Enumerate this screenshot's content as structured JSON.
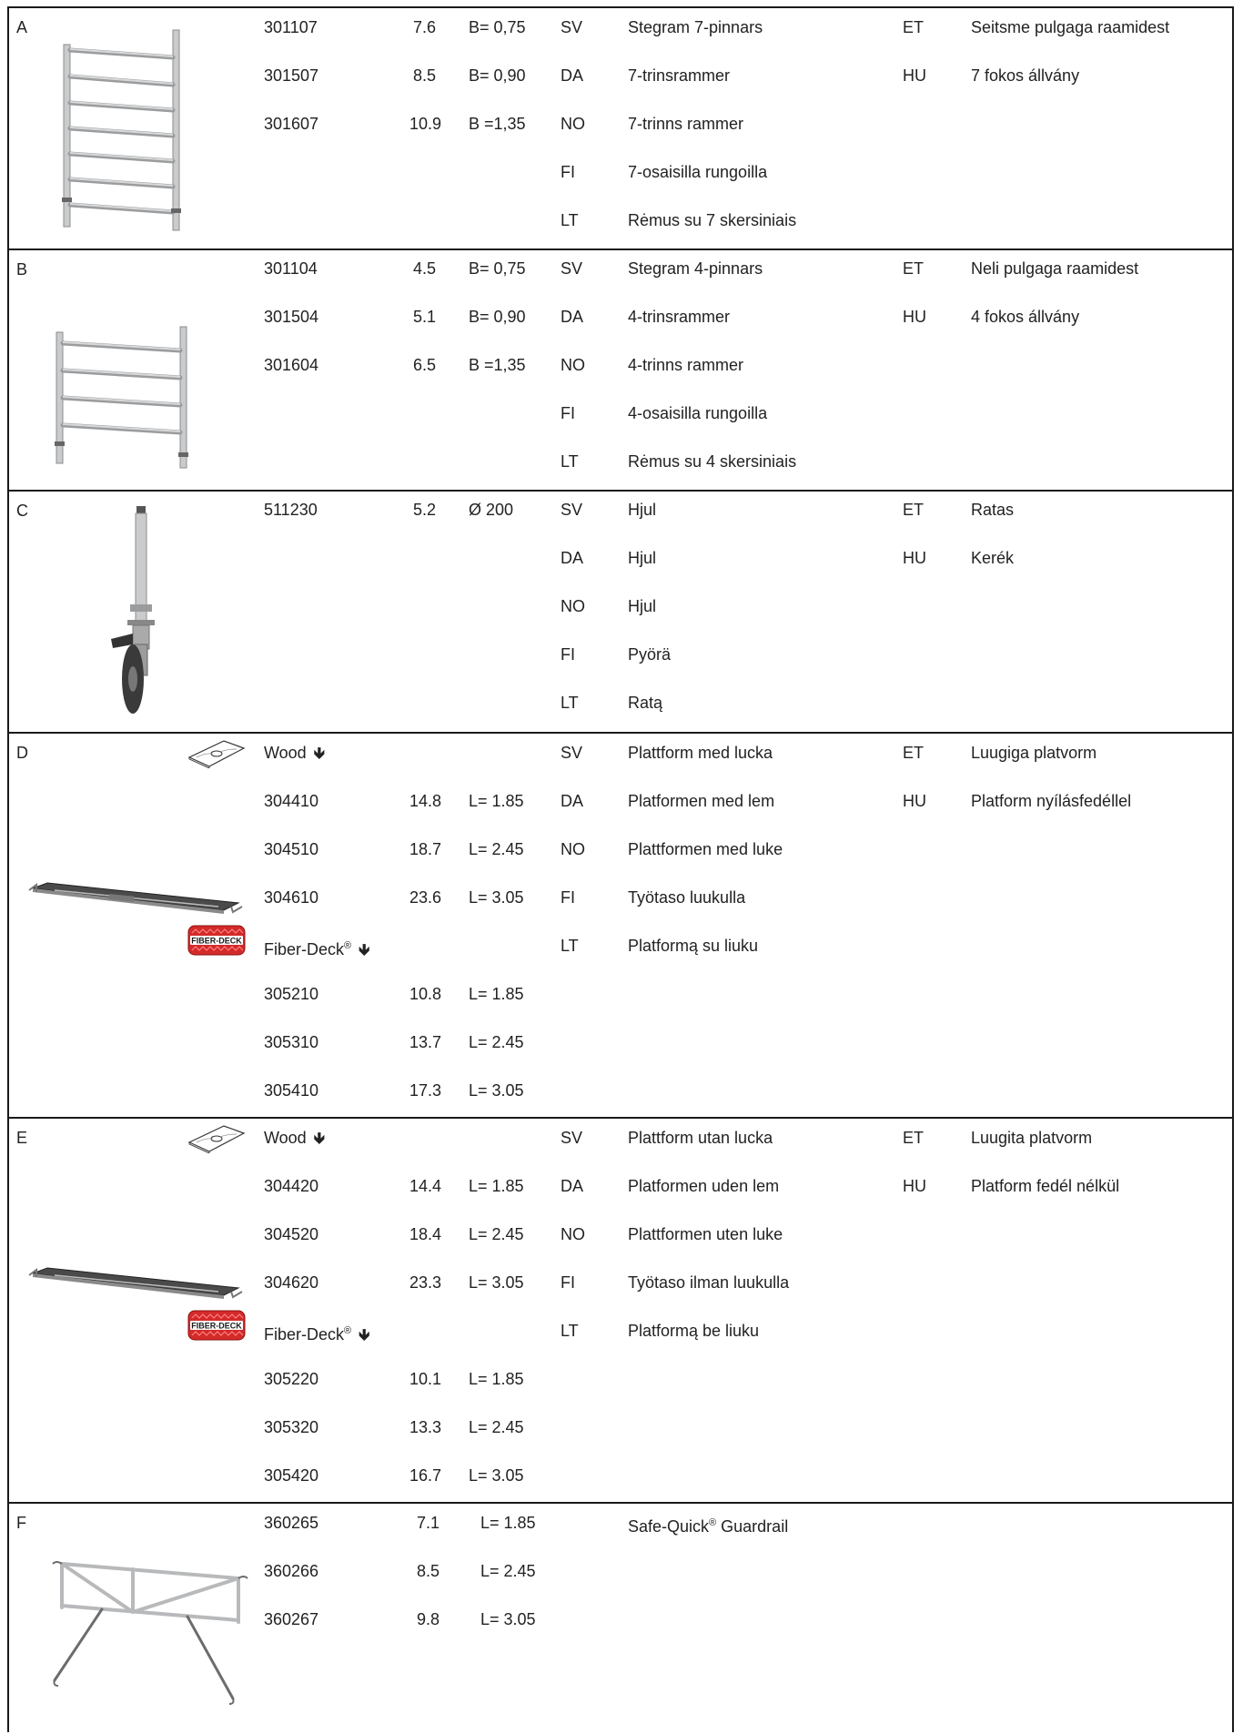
{
  "sections": [
    {
      "letter": "A",
      "articles": [
        {
          "no": "301107",
          "weight": "7.6",
          "dim": "B= 0,75"
        },
        {
          "no": "301507",
          "weight": "8.5",
          "dim": "B= 0,90"
        },
        {
          "no": "301607",
          "weight": "10.9",
          "dim": "B =1,35"
        }
      ],
      "translations": [
        {
          "lang": "SV",
          "text": "Stegram 7-pinnars"
        },
        {
          "lang": "DA",
          "text": "7-trinsrammer"
        },
        {
          "lang": "NO",
          "text": "7-trinns rammer"
        },
        {
          "lang": "FI",
          "text": "7-osaisilla rungoilla"
        },
        {
          "lang": "LT",
          "text": "Rėmus su 7 skersiniais"
        }
      ],
      "translations2": [
        {
          "lang": "ET",
          "text": "Seitsme pulgaga raamidest"
        },
        {
          "lang": "HU",
          "text": "7 fokos állvány"
        }
      ]
    },
    {
      "letter": "B",
      "articles": [
        {
          "no": "301104",
          "weight": "4.5",
          "dim": "B= 0,75"
        },
        {
          "no": "301504",
          "weight": "5.1",
          "dim": "B= 0,90"
        },
        {
          "no": "301604",
          "weight": "6.5",
          "dim": "B =1,35"
        }
      ],
      "translations": [
        {
          "lang": "SV",
          "text": "Stegram 4-pinnars"
        },
        {
          "lang": "DA",
          "text": "4-trinsrammer"
        },
        {
          "lang": "NO",
          "text": "4-trinns rammer"
        },
        {
          "lang": "FI",
          "text": "4-osaisilla rungoilla"
        },
        {
          "lang": "LT",
          "text": "Rėmus su 4 skersiniais"
        }
      ],
      "translations2": [
        {
          "lang": "ET",
          "text": "Neli pulgaga raamidest"
        },
        {
          "lang": "HU",
          "text": "4 fokos állvány"
        }
      ]
    },
    {
      "letter": "C",
      "articles": [
        {
          "no": "511230",
          "weight": "5.2",
          "dim": "Ø 200"
        }
      ],
      "translations": [
        {
          "lang": "SV",
          "text": "Hjul"
        },
        {
          "lang": "DA",
          "text": "Hjul"
        },
        {
          "lang": "NO",
          "text": "Hjul"
        },
        {
          "lang": "FI",
          "text": "Pyörä"
        },
        {
          "lang": "LT",
          "text": "Ratą"
        }
      ],
      "translations2": [
        {
          "lang": "ET",
          "text": "Ratas"
        },
        {
          "lang": "HU",
          "text": "Kerék"
        }
      ]
    },
    {
      "letter": "D",
      "wood_label": "Wood",
      "fiber_label": "Fiber-Deck",
      "fiber_reg": "®",
      "fiber_logo_text": "FIBER-DECK",
      "wood_articles": [
        {
          "no": "304410",
          "weight": "14.8",
          "dim": "L= 1.85"
        },
        {
          "no": "304510",
          "weight": "18.7",
          "dim": "L= 2.45"
        },
        {
          "no": "304610",
          "weight": "23.6",
          "dim": "L= 3.05"
        }
      ],
      "fiber_articles": [
        {
          "no": "305210",
          "weight": "10.8",
          "dim": "L= 1.85"
        },
        {
          "no": "305310",
          "weight": "13.7",
          "dim": "L= 2.45"
        },
        {
          "no": "305410",
          "weight": "17.3",
          "dim": "L= 3.05"
        }
      ],
      "translations": [
        {
          "lang": "SV",
          "text": "Plattform med lucka"
        },
        {
          "lang": "DA",
          "text": "Platformen med lem"
        },
        {
          "lang": "NO",
          "text": "Plattformen med luke"
        },
        {
          "lang": "FI",
          "text": "Työtaso luukulla"
        },
        {
          "lang": "LT",
          "text": "Platformą su liuku"
        }
      ],
      "translations2": [
        {
          "lang": "ET",
          "text": "Luugiga platvorm"
        },
        {
          "lang": "HU",
          "text": "Platform nyílásfedéllel"
        }
      ]
    },
    {
      "letter": "E",
      "wood_label": "Wood",
      "fiber_label": "Fiber-Deck",
      "fiber_reg": "®",
      "fiber_logo_text": "FIBER-DECK",
      "wood_articles": [
        {
          "no": "304420",
          "weight": "14.4",
          "dim": "L= 1.85"
        },
        {
          "no": "304520",
          "weight": "18.4",
          "dim": "L= 2.45"
        },
        {
          "no": "304620",
          "weight": "23.3",
          "dim": "L= 3.05"
        }
      ],
      "fiber_articles": [
        {
          "no": "305220",
          "weight": "10.1",
          "dim": "L= 1.85"
        },
        {
          "no": "305320",
          "weight": "13.3",
          "dim": "L= 2.45"
        },
        {
          "no": "305420",
          "weight": "16.7",
          "dim": "L= 3.05"
        }
      ],
      "translations": [
        {
          "lang": "SV",
          "text": "Plattform utan lucka"
        },
        {
          "lang": "DA",
          "text": "Platformen uden lem"
        },
        {
          "lang": "NO",
          "text": "Plattformen uten luke"
        },
        {
          "lang": "FI",
          "text": "Työtaso ilman luukulla"
        },
        {
          "lang": "LT",
          "text": "Platformą be liuku"
        }
      ],
      "translations2": [
        {
          "lang": "ET",
          "text": "Luugita platvorm"
        },
        {
          "lang": "HU",
          "text": "Platform fedél nélkül"
        }
      ]
    },
    {
      "letter": "F",
      "articles": [
        {
          "no": "360265",
          "weight": "7.1",
          "dim": "L= 1.85"
        },
        {
          "no": "360266",
          "weight": "8.5",
          "dim": "L= 2.45"
        },
        {
          "no": "360267",
          "weight": "9.8",
          "dim": "L= 3.05"
        }
      ],
      "product_name": "Safe-Quick",
      "product_reg": "®",
      "product_suffix": " Guardrail"
    }
  ],
  "icons": {
    "down_arrow": "🡻",
    "arrow_name": "down-arrow-icon"
  }
}
